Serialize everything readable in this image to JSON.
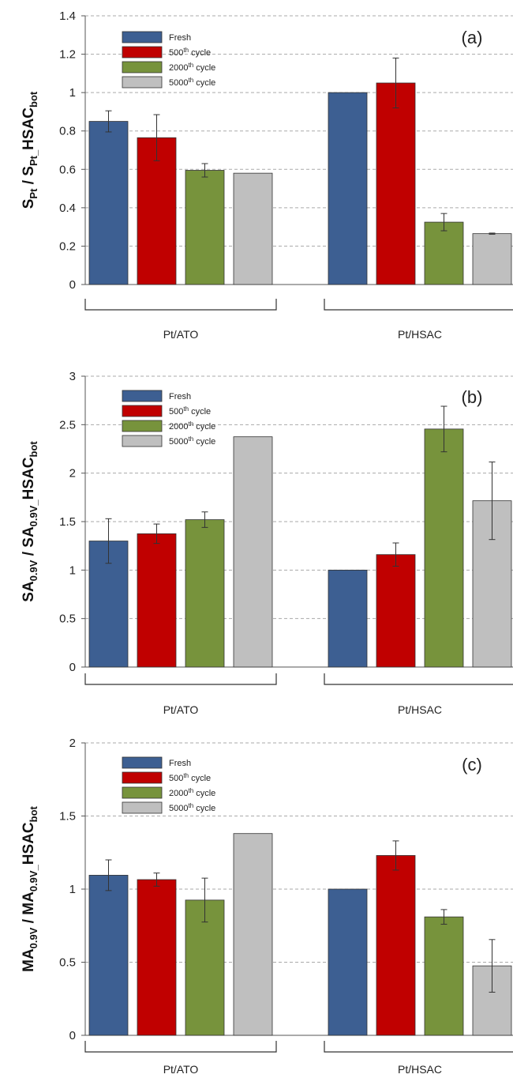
{
  "chart_data": [
    {
      "type": "bar",
      "panel_label": "(a)",
      "ylabel": {
        "base": "S",
        "sub1": "Pt",
        "mid": " / S",
        "sub2": "Pt_",
        "tail": "HSAC",
        "sub3": "bot"
      },
      "ylim": [
        0,
        1.4
      ],
      "yticks": [
        "0",
        "0.2",
        "0.4",
        "0.6",
        "0.8",
        "1",
        "1.2",
        "1.4"
      ],
      "ytick_values": [
        0,
        0.2,
        0.4,
        0.6,
        0.8,
        1.0,
        1.2,
        1.4
      ],
      "grid": true,
      "legend_placement": "top-left",
      "categories": [
        "Pt/ATO",
        "Pt/HSAC"
      ],
      "series": [
        {
          "name": "Fresh",
          "sup": "",
          "suffix": "",
          "values": [
            0.85,
            1.0
          ],
          "errors": [
            0.055,
            0
          ]
        },
        {
          "name": "500",
          "sup": "th",
          "suffix": " cycle",
          "values": [
            0.765,
            1.05
          ],
          "errors": [
            0.12,
            0.13
          ]
        },
        {
          "name": "2000",
          "sup": "th",
          "suffix": " cycle",
          "values": [
            0.595,
            0.325
          ],
          "errors": [
            0.035,
            0.045
          ]
        },
        {
          "name": "5000",
          "sup": "th",
          "suffix": " cycle",
          "values": [
            0.58,
            0.265
          ],
          "errors": [
            0,
            0.003
          ]
        }
      ]
    },
    {
      "type": "bar",
      "panel_label": "(b)",
      "ylabel": {
        "base": "SA",
        "sub1": "0.9V",
        "mid": " / SA",
        "sub2": "0.9V_",
        "tail": "HSAC",
        "sub3": "bot"
      },
      "ylim": [
        0,
        3
      ],
      "yticks": [
        "0",
        "0.5",
        "1",
        "1.5",
        "2",
        "2.5",
        "3"
      ],
      "ytick_values": [
        0,
        0.5,
        1.0,
        1.5,
        2.0,
        2.5,
        3.0
      ],
      "grid": true,
      "legend_placement": "top-left",
      "categories": [
        "Pt/ATO",
        "Pt/HSAC"
      ],
      "series": [
        {
          "name": "Fresh",
          "sup": "",
          "suffix": "",
          "values": [
            1.3,
            1.0
          ],
          "errors": [
            0.23,
            0
          ]
        },
        {
          "name": "500",
          "sup": "th",
          "suffix": " cycle",
          "values": [
            1.375,
            1.16
          ],
          "errors": [
            0.1,
            0.12
          ]
        },
        {
          "name": "2000",
          "sup": "th",
          "suffix": " cycle",
          "values": [
            1.52,
            2.455
          ],
          "errors": [
            0.08,
            0.235
          ]
        },
        {
          "name": "5000",
          "sup": "th",
          "suffix": " cycle",
          "values": [
            2.375,
            1.715
          ],
          "errors": [
            0,
            0.4
          ]
        }
      ]
    },
    {
      "type": "bar",
      "panel_label": "(c)",
      "ylabel": {
        "base": "MA",
        "sub1": "0.9V",
        "mid": " / MA",
        "sub2": "0.9V_",
        "tail": "HSAC",
        "sub3": "bot"
      },
      "ylim": [
        0,
        2
      ],
      "yticks": [
        "0",
        "0.5",
        "1",
        "1.5",
        "2"
      ],
      "ytick_values": [
        0,
        0.5,
        1.0,
        1.5,
        2.0
      ],
      "grid": true,
      "legend_placement": "top-left",
      "categories": [
        "Pt/ATO",
        "Pt/HSAC"
      ],
      "series": [
        {
          "name": "Fresh",
          "sup": "",
          "suffix": "",
          "values": [
            1.095,
            1.0
          ],
          "errors": [
            0.105,
            0
          ]
        },
        {
          "name": "500",
          "sup": "th",
          "suffix": " cycle",
          "values": [
            1.065,
            1.23
          ],
          "errors": [
            0.045,
            0.1
          ]
        },
        {
          "name": "2000",
          "sup": "th",
          "suffix": " cycle",
          "values": [
            0.925,
            0.81
          ],
          "errors": [
            0.15,
            0.05
          ]
        },
        {
          "name": "5000",
          "sup": "th",
          "suffix": " cycle",
          "values": [
            1.38,
            0.475
          ],
          "errors": [
            0,
            0.18
          ]
        }
      ]
    }
  ],
  "colors": {
    "fresh": "#3d5f92",
    "c500": "#c00000",
    "c2000": "#77933c",
    "c5000": "#bfbfbf",
    "grid": "#aaaaaa",
    "axis": "#555555"
  }
}
